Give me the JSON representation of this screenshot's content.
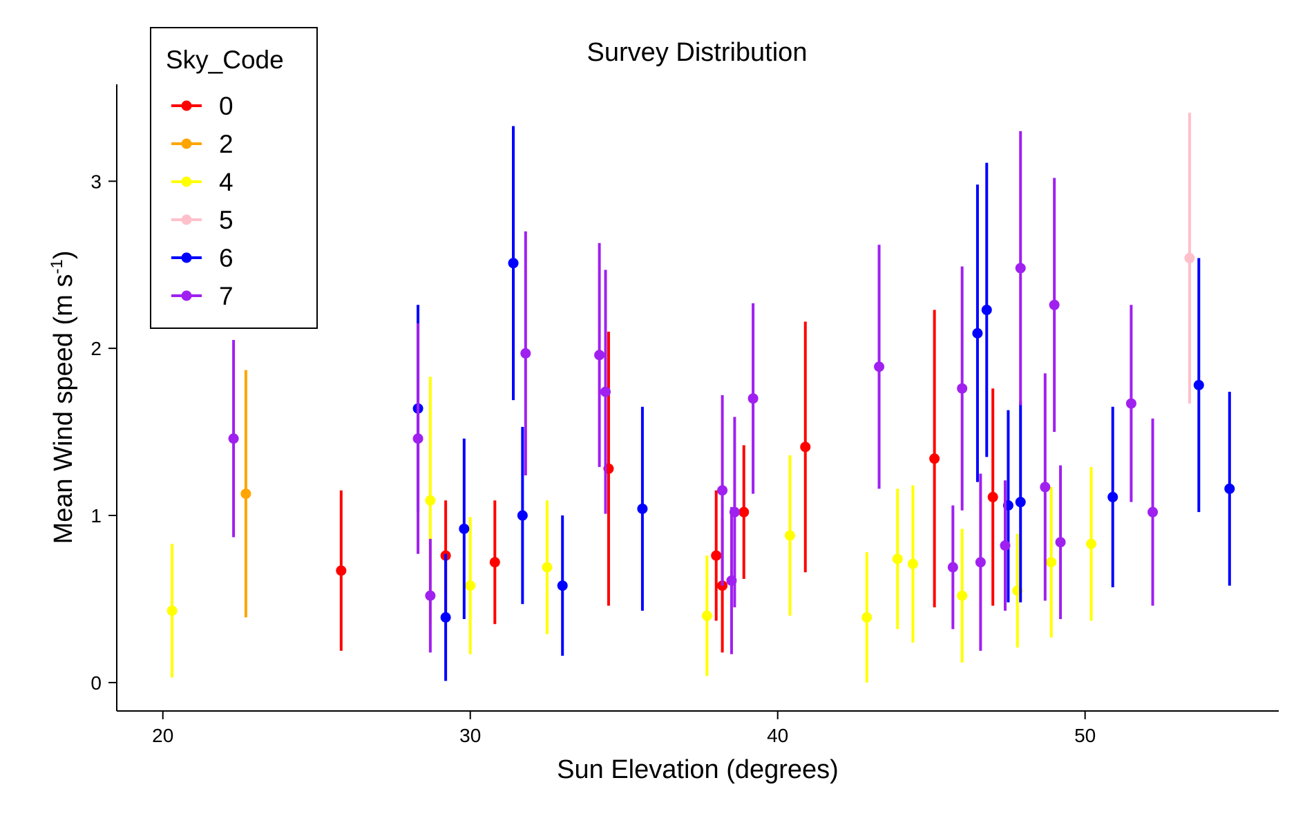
{
  "chart_data": {
    "type": "scatter",
    "title": "Survey Distribution",
    "xlabel": "Sun Elevation (degrees)",
    "ylabel": "Mean Wind speed (m s",
    "ylabel_sup": "-1",
    "ylabel_close": ")",
    "xlim": [
      18.5,
      56.3
    ],
    "ylim": [
      -0.17,
      3.58
    ],
    "xticks": [
      20,
      30,
      40,
      50
    ],
    "yticks": [
      0,
      1,
      2,
      3
    ],
    "grid": false,
    "legend": {
      "title": "Sky_Code",
      "placement": "top-left"
    },
    "error_bars": true,
    "series": [
      {
        "name": "0",
        "color": "#ff0000",
        "points": [
          {
            "x": 25.8,
            "y": 0.67,
            "lo": 0.19,
            "hi": 1.15
          },
          {
            "x": 29.2,
            "y": 0.76,
            "lo": 0.43,
            "hi": 1.09
          },
          {
            "x": 30.8,
            "y": 0.72,
            "lo": 0.35,
            "hi": 1.09
          },
          {
            "x": 34.5,
            "y": 1.28,
            "lo": 0.46,
            "hi": 2.1
          },
          {
            "x": 38.0,
            "y": 0.76,
            "lo": 0.37,
            "hi": 1.15
          },
          {
            "x": 38.2,
            "y": 0.58,
            "lo": 0.18,
            "hi": 0.98
          },
          {
            "x": 38.9,
            "y": 1.02,
            "lo": 0.62,
            "hi": 1.42
          },
          {
            "x": 40.9,
            "y": 1.41,
            "lo": 0.66,
            "hi": 2.16
          },
          {
            "x": 45.1,
            "y": 1.34,
            "lo": 0.45,
            "hi": 2.23
          },
          {
            "x": 47.0,
            "y": 1.11,
            "lo": 0.46,
            "hi": 1.76
          }
        ]
      },
      {
        "name": "2",
        "color": "#ffa500",
        "points": [
          {
            "x": 22.7,
            "y": 1.13,
            "lo": 0.39,
            "hi": 1.87
          }
        ]
      },
      {
        "name": "4",
        "color": "#ffff00",
        "points": [
          {
            "x": 20.3,
            "y": 0.43,
            "lo": 0.03,
            "hi": 0.83
          },
          {
            "x": 28.7,
            "y": 1.09,
            "lo": 0.35,
            "hi": 1.83
          },
          {
            "x": 30.0,
            "y": 0.58,
            "lo": 0.17,
            "hi": 0.99
          },
          {
            "x": 32.5,
            "y": 0.69,
            "lo": 0.29,
            "hi": 1.09
          },
          {
            "x": 37.7,
            "y": 0.4,
            "lo": 0.04,
            "hi": 0.76
          },
          {
            "x": 40.4,
            "y": 0.88,
            "lo": 0.4,
            "hi": 1.36
          },
          {
            "x": 42.9,
            "y": 0.39,
            "lo": 0.0,
            "hi": 0.78
          },
          {
            "x": 43.9,
            "y": 0.74,
            "lo": 0.32,
            "hi": 1.16
          },
          {
            "x": 44.4,
            "y": 0.71,
            "lo": 0.24,
            "hi": 1.18
          },
          {
            "x": 46.0,
            "y": 0.52,
            "lo": 0.12,
            "hi": 0.92
          },
          {
            "x": 47.8,
            "y": 0.55,
            "lo": 0.21,
            "hi": 0.89
          },
          {
            "x": 48.9,
            "y": 0.72,
            "lo": 0.27,
            "hi": 1.17
          },
          {
            "x": 50.2,
            "y": 0.83,
            "lo": 0.37,
            "hi": 1.29
          }
        ]
      },
      {
        "name": "5",
        "color": "#ffc0cb",
        "points": [
          {
            "x": 53.4,
            "y": 2.54,
            "lo": 1.67,
            "hi": 3.41
          }
        ]
      },
      {
        "name": "6",
        "color": "#0000ff",
        "points": [
          {
            "x": 28.3,
            "y": 1.64,
            "lo": 1.02,
            "hi": 2.26
          },
          {
            "x": 29.2,
            "y": 0.39,
            "lo": 0.01,
            "hi": 0.77
          },
          {
            "x": 29.8,
            "y": 0.92,
            "lo": 0.38,
            "hi": 1.46
          },
          {
            "x": 31.4,
            "y": 2.51,
            "lo": 1.69,
            "hi": 3.33
          },
          {
            "x": 31.7,
            "y": 1.0,
            "lo": 0.47,
            "hi": 1.53
          },
          {
            "x": 33.0,
            "y": 0.58,
            "lo": 0.16,
            "hi": 1.0
          },
          {
            "x": 35.6,
            "y": 1.04,
            "lo": 0.43,
            "hi": 1.65
          },
          {
            "x": 46.5,
            "y": 2.09,
            "lo": 1.2,
            "hi": 2.98
          },
          {
            "x": 46.8,
            "y": 2.23,
            "lo": 1.35,
            "hi": 3.11
          },
          {
            "x": 47.5,
            "y": 1.06,
            "lo": 0.48,
            "hi": 1.63
          },
          {
            "x": 47.9,
            "y": 1.08,
            "lo": 0.48,
            "hi": 1.68
          },
          {
            "x": 50.9,
            "y": 1.11,
            "lo": 0.57,
            "hi": 1.65
          },
          {
            "x": 53.7,
            "y": 1.78,
            "lo": 1.02,
            "hi": 2.54
          },
          {
            "x": 54.7,
            "y": 1.16,
            "lo": 0.58,
            "hi": 1.74
          }
        ]
      },
      {
        "name": "7",
        "color": "#a020f0",
        "points": [
          {
            "x": 22.3,
            "y": 1.46,
            "lo": 0.87,
            "hi": 2.05
          },
          {
            "x": 28.3,
            "y": 1.46,
            "lo": 0.77,
            "hi": 2.15
          },
          {
            "x": 28.7,
            "y": 0.52,
            "lo": 0.18,
            "hi": 0.86
          },
          {
            "x": 31.8,
            "y": 1.97,
            "lo": 1.24,
            "hi": 2.7
          },
          {
            "x": 34.2,
            "y": 1.96,
            "lo": 1.29,
            "hi": 2.63
          },
          {
            "x": 34.4,
            "y": 1.74,
            "lo": 1.01,
            "hi": 2.47
          },
          {
            "x": 38.2,
            "y": 1.15,
            "lo": 0.58,
            "hi": 1.72
          },
          {
            "x": 38.5,
            "y": 0.61,
            "lo": 0.17,
            "hi": 1.05
          },
          {
            "x": 38.6,
            "y": 1.02,
            "lo": 0.45,
            "hi": 1.59
          },
          {
            "x": 39.2,
            "y": 1.7,
            "lo": 1.13,
            "hi": 2.27
          },
          {
            "x": 43.3,
            "y": 1.89,
            "lo": 1.16,
            "hi": 2.62
          },
          {
            "x": 45.7,
            "y": 0.69,
            "lo": 0.32,
            "hi": 1.06
          },
          {
            "x": 46.0,
            "y": 1.76,
            "lo": 1.03,
            "hi": 2.49
          },
          {
            "x": 46.6,
            "y": 0.72,
            "lo": 0.19,
            "hi": 1.25
          },
          {
            "x": 47.4,
            "y": 0.82,
            "lo": 0.43,
            "hi": 1.21
          },
          {
            "x": 47.9,
            "y": 2.48,
            "lo": 1.66,
            "hi": 3.3
          },
          {
            "x": 48.7,
            "y": 1.17,
            "lo": 0.49,
            "hi": 1.85
          },
          {
            "x": 49.0,
            "y": 2.26,
            "lo": 1.5,
            "hi": 3.02
          },
          {
            "x": 49.2,
            "y": 0.84,
            "lo": 0.38,
            "hi": 1.3
          },
          {
            "x": 51.5,
            "y": 1.67,
            "lo": 1.08,
            "hi": 2.26
          },
          {
            "x": 52.2,
            "y": 1.02,
            "lo": 0.46,
            "hi": 1.58
          }
        ]
      }
    ]
  }
}
